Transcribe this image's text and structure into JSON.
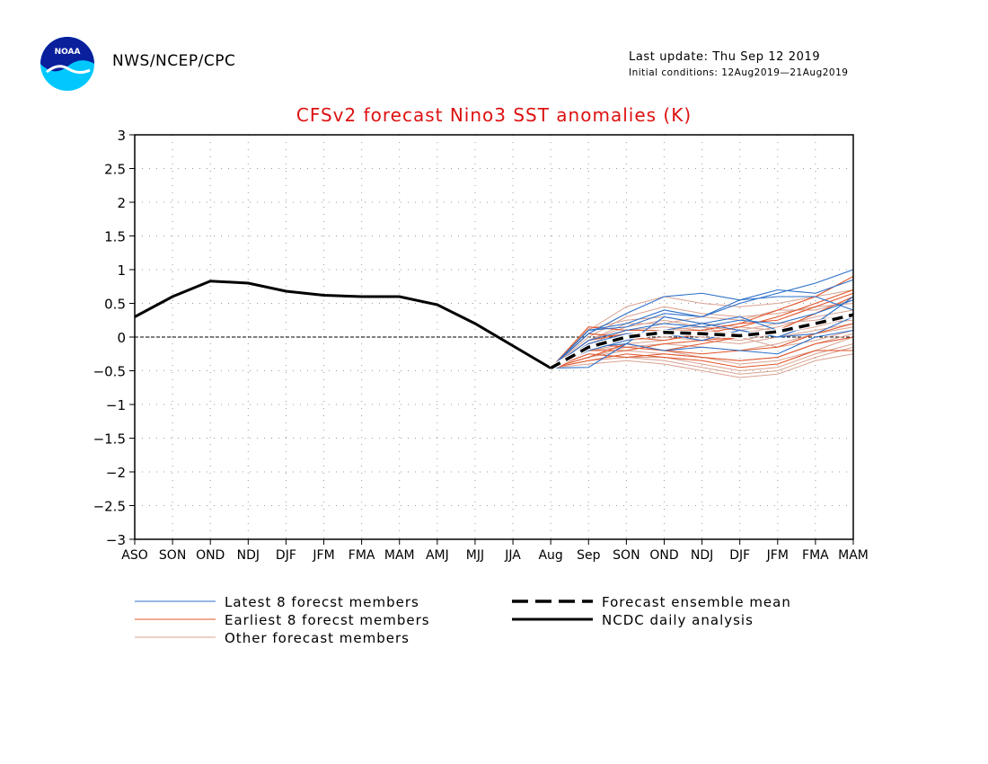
{
  "header": {
    "agency": "NWS/NCEP/CPC",
    "last_update": "Last update: Thu Sep 12 2019",
    "initial_conditions": "Initial conditions: 12Aug2019—21Aug2019",
    "logo_text": "NOAA"
  },
  "colors": {
    "latest": "#2a6fc9",
    "earliest": "#e2542a",
    "other": "#d9a291",
    "title": "#dd1111",
    "observed": "#000000"
  },
  "chart_data": {
    "type": "line",
    "title": "CFSv2 forecast Nino3 SST anomalies (K)",
    "x_categories": [
      "ASO",
      "SON",
      "OND",
      "NDJ",
      "DJF",
      "JFM",
      "FMA",
      "MAM",
      "AMJ",
      "MJJ",
      "JJA",
      "Aug",
      "Sep",
      "SON",
      "OND",
      "NDJ",
      "DJF",
      "JFM",
      "FMA",
      "MAM"
    ],
    "y_ticks": [
      "3",
      "2.5",
      "2",
      "1.5",
      "1",
      "0.5",
      "0",
      "−0.5",
      "−1",
      "−1.5",
      "−2",
      "−2.5",
      "−3"
    ],
    "ylim": [
      -3,
      3
    ],
    "grid": true,
    "legend": [
      {
        "key": "latest",
        "label": "Latest 8 forecst members"
      },
      {
        "key": "earliest",
        "label": "Earliest 8 forecst members"
      },
      {
        "key": "other",
        "label": "Other forecast members"
      },
      {
        "key": "mean",
        "label": "Forecast ensemble mean"
      },
      {
        "key": "observed",
        "label": "NCDC daily analysis"
      }
    ],
    "observed": {
      "name": "NCDC daily analysis",
      "x": [
        "ASO",
        "SON",
        "OND",
        "NDJ",
        "DJF",
        "JFM",
        "FMA",
        "MAM",
        "AMJ",
        "MJJ",
        "JJA",
        "Aug"
      ],
      "values": [
        0.3,
        0.6,
        0.83,
        0.8,
        0.68,
        0.62,
        0.6,
        0.6,
        0.48,
        0.2,
        -0.13,
        -0.46
      ]
    },
    "ensemble_mean": {
      "name": "Forecast ensemble mean",
      "x": [
        "Aug",
        "Sep",
        "SON",
        "OND",
        "NDJ",
        "DJF",
        "JFM",
        "FMA",
        "MAM"
      ],
      "values": [
        -0.46,
        -0.15,
        0.0,
        0.07,
        0.05,
        0.02,
        0.08,
        0.2,
        0.33
      ]
    },
    "members": {
      "x": [
        "Aug",
        "Sep",
        "SON",
        "OND",
        "NDJ",
        "DJF",
        "JFM",
        "FMA",
        "MAM"
      ],
      "latest": [
        [
          -0.46,
          0.1,
          0.2,
          0.4,
          0.3,
          0.5,
          0.65,
          0.8,
          1.0
        ],
        [
          -0.46,
          0.05,
          0.35,
          0.6,
          0.65,
          0.55,
          0.7,
          0.65,
          0.85
        ],
        [
          -0.46,
          0.1,
          0.15,
          0.35,
          0.3,
          0.55,
          0.6,
          0.6,
          0.4
        ],
        [
          -0.46,
          -0.05,
          0.1,
          0.2,
          0.15,
          0.25,
          0.2,
          0.35,
          0.55
        ],
        [
          -0.46,
          -0.1,
          0.05,
          0.05,
          -0.05,
          0.1,
          0.0,
          0.2,
          0.3
        ],
        [
          -0.46,
          -0.2,
          -0.05,
          0.1,
          0.2,
          0.1,
          0.0,
          0.05,
          0.3
        ],
        [
          -0.46,
          -0.45,
          -0.1,
          -0.2,
          -0.15,
          -0.2,
          -0.25,
          0.0,
          0.1
        ],
        [
          -0.46,
          -0.15,
          -0.1,
          0.3,
          0.2,
          0.3,
          0.1,
          0.2,
          0.6
        ]
      ],
      "earliest": [
        [
          -0.46,
          0.15,
          0.1,
          0.1,
          0.1,
          0.2,
          0.4,
          0.6,
          0.9
        ],
        [
          -0.46,
          0.05,
          0.0,
          -0.05,
          0.05,
          0.15,
          0.3,
          0.5,
          0.7
        ],
        [
          -0.46,
          -0.1,
          -0.15,
          -0.2,
          -0.1,
          0.0,
          0.1,
          0.35,
          0.6
        ],
        [
          -0.46,
          -0.2,
          -0.2,
          -0.1,
          -0.05,
          0.0,
          0.1,
          0.2,
          0.35
        ],
        [
          -0.46,
          -0.3,
          -0.1,
          -0.2,
          -0.25,
          -0.2,
          -0.15,
          0.05,
          0.2
        ],
        [
          -0.46,
          -0.25,
          -0.3,
          -0.25,
          -0.3,
          -0.35,
          -0.3,
          -0.1,
          0.0
        ],
        [
          -0.46,
          -0.35,
          -0.25,
          -0.3,
          -0.35,
          -0.45,
          -0.4,
          -0.2,
          -0.2
        ],
        [
          -0.46,
          -0.05,
          0.05,
          0.05,
          0.1,
          0.2,
          0.25,
          0.45,
          0.65
        ]
      ],
      "other": [
        [
          -0.46,
          0.1,
          0.45,
          0.6,
          0.5,
          0.45,
          0.5,
          0.6,
          0.7
        ],
        [
          -0.46,
          0.0,
          0.3,
          0.45,
          0.35,
          0.3,
          0.35,
          0.45,
          0.5
        ],
        [
          -0.46,
          -0.05,
          0.2,
          0.2,
          0.3,
          0.25,
          0.4,
          0.4,
          0.55
        ],
        [
          -0.46,
          -0.1,
          0.1,
          0.15,
          0.1,
          0.05,
          0.15,
          0.3,
          0.4
        ],
        [
          -0.46,
          -0.15,
          -0.05,
          0.05,
          0.0,
          -0.05,
          0.05,
          0.2,
          0.3
        ],
        [
          -0.46,
          -0.2,
          -0.15,
          -0.1,
          -0.15,
          -0.2,
          -0.1,
          0.05,
          0.15
        ],
        [
          -0.46,
          -0.3,
          -0.2,
          -0.25,
          -0.3,
          -0.35,
          -0.3,
          -0.1,
          0.05
        ],
        [
          -0.46,
          -0.35,
          -0.3,
          -0.35,
          -0.45,
          -0.55,
          -0.5,
          -0.3,
          -0.15
        ],
        [
          -0.46,
          -0.4,
          -0.35,
          -0.4,
          -0.5,
          -0.6,
          -0.55,
          -0.35,
          -0.25
        ],
        [
          -0.46,
          -0.25,
          -0.3,
          -0.3,
          -0.4,
          -0.5,
          -0.45,
          -0.25,
          -0.1
        ],
        [
          -0.46,
          0.05,
          0.0,
          0.1,
          0.15,
          0.1,
          0.2,
          0.25,
          0.35
        ],
        [
          -0.46,
          -0.1,
          -0.05,
          0.0,
          -0.05,
          -0.1,
          0.0,
          0.1,
          0.2
        ],
        [
          -0.46,
          0.12,
          0.25,
          0.3,
          0.2,
          0.15,
          0.1,
          0.2,
          0.25
        ],
        [
          -0.46,
          -0.2,
          -0.1,
          -0.05,
          0.05,
          0.0,
          -0.15,
          -0.05,
          0.1
        ],
        [
          -0.46,
          -0.3,
          -0.15,
          -0.2,
          -0.3,
          -0.4,
          -0.35,
          -0.2,
          0.0
        ],
        [
          -0.46,
          -0.05,
          0.15,
          0.25,
          0.15,
          0.0,
          0.05,
          0.15,
          0.3
        ]
      ]
    }
  }
}
